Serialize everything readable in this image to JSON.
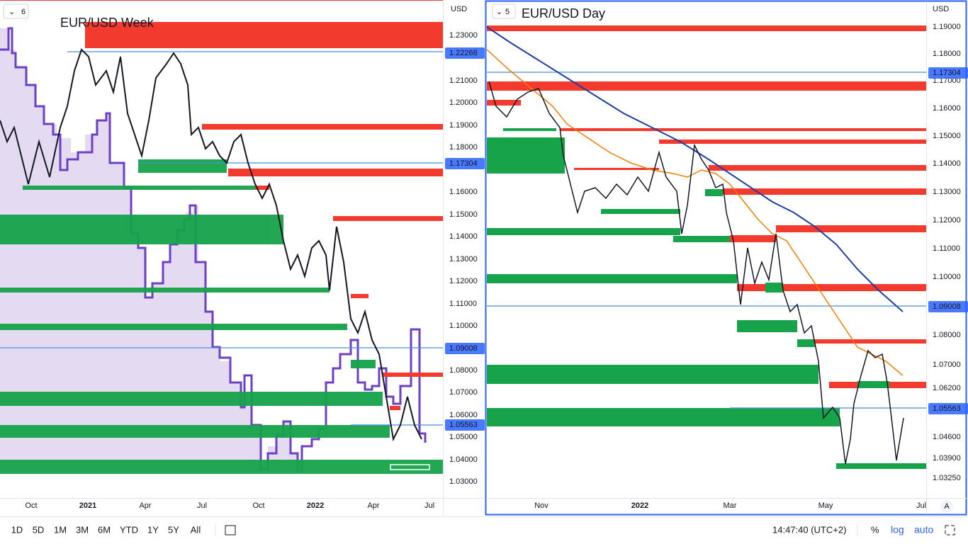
{
  "panels": [
    {
      "title": "EUR/USD Week",
      "interval": "6",
      "currency": "USD",
      "price_labels": [
        "1.23000",
        "1.21000",
        "1.20000",
        "1.19000",
        "1.18000",
        "1.16000",
        "1.15000",
        "1.14000",
        "1.13000",
        "1.12000",
        "1.11000",
        "1.10000",
        "1.08000",
        "1.07000",
        "1.06000",
        "1.05000",
        "1.04000",
        "1.03000"
      ],
      "highlighted_levels": [
        "1.22268",
        "1.17304",
        "1.09008",
        "1.05563"
      ],
      "time_labels": [
        "Oct",
        "2021",
        "Apr",
        "Jul",
        "Oct",
        "2022",
        "Apr",
        "Jul"
      ]
    },
    {
      "title": "EUR/USD Day",
      "interval": "5",
      "currency": "USD",
      "price_labels": [
        "1.19000",
        "1.18000",
        "1.17000",
        "1.16000",
        "1.15000",
        "1.14000",
        "1.13000",
        "1.12000",
        "1.11000",
        "1.10000",
        "1.08000",
        "1.07000",
        "1.06200",
        "1.04600",
        "1.03900",
        "1.03250"
      ],
      "highlighted_levels": [
        "1.17304",
        "1.09008",
        "1.05563"
      ],
      "time_labels": [
        "Nov",
        "2022",
        "Mar",
        "May",
        "Jul"
      ],
      "auto_scale": "A"
    }
  ],
  "toolbar": {
    "ranges": [
      "1D",
      "5D",
      "1M",
      "3M",
      "6M",
      "YTD",
      "1Y",
      "5Y",
      "All"
    ],
    "clock": "14:47:40 (UTC+2)",
    "percent": "%",
    "log": "log",
    "auto": "auto"
  }
}
